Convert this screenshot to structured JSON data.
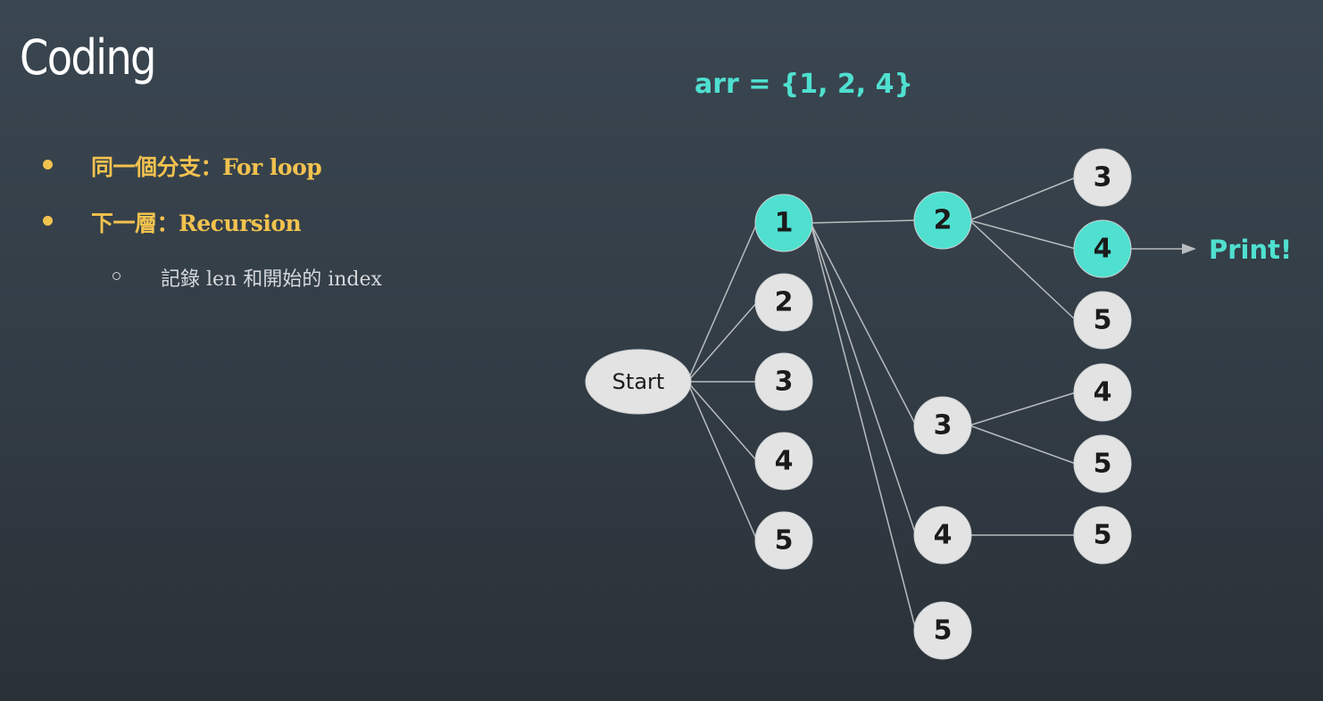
{
  "slide": {
    "title": "Coding",
    "bullets": [
      {
        "text": "同一個分支：For loop"
      },
      {
        "text": "下一層：Recursion"
      }
    ],
    "sub_bullets": [
      {
        "text": "記錄 len 和開始的 index"
      }
    ]
  },
  "diagram": {
    "array_label": "arr = {1, 2, 4}",
    "print_label": "Print!",
    "colors": {
      "highlight": "#4fe0d0",
      "node_fill": "#e3e3e3",
      "edge": "#b8bcbf",
      "text_accent": "#f2c24f"
    },
    "nodes": [
      {
        "id": "start",
        "label": "Start",
        "highlighted": false
      },
      {
        "id": "l1_1",
        "label": "1",
        "highlighted": true
      },
      {
        "id": "l1_2",
        "label": "2",
        "highlighted": false
      },
      {
        "id": "l1_3",
        "label": "3",
        "highlighted": false
      },
      {
        "id": "l1_4",
        "label": "4",
        "highlighted": false
      },
      {
        "id": "l1_5",
        "label": "5",
        "highlighted": false
      },
      {
        "id": "l2_2",
        "label": "2",
        "highlighted": true
      },
      {
        "id": "l2_3",
        "label": "3",
        "highlighted": false
      },
      {
        "id": "l2_4",
        "label": "4",
        "highlighted": false
      },
      {
        "id": "l2_5",
        "label": "5",
        "highlighted": false
      },
      {
        "id": "l3_3a",
        "label": "3",
        "highlighted": false
      },
      {
        "id": "l3_4a",
        "label": "4",
        "highlighted": true
      },
      {
        "id": "l3_5a",
        "label": "5",
        "highlighted": false
      },
      {
        "id": "l3_4b",
        "label": "4",
        "highlighted": false
      },
      {
        "id": "l3_5b",
        "label": "5",
        "highlighted": false
      },
      {
        "id": "l3_5c",
        "label": "5",
        "highlighted": false
      }
    ],
    "edges": [
      [
        "start",
        "l1_1"
      ],
      [
        "start",
        "l1_2"
      ],
      [
        "start",
        "l1_3"
      ],
      [
        "start",
        "l1_4"
      ],
      [
        "start",
        "l1_5"
      ],
      [
        "l1_1",
        "l2_2"
      ],
      [
        "l1_1",
        "l2_3"
      ],
      [
        "l1_1",
        "l2_4"
      ],
      [
        "l1_1",
        "l2_5"
      ],
      [
        "l2_2",
        "l3_3a"
      ],
      [
        "l2_2",
        "l3_4a"
      ],
      [
        "l2_2",
        "l3_5a"
      ],
      [
        "l2_3",
        "l3_4b"
      ],
      [
        "l2_3",
        "l3_5b"
      ],
      [
        "l2_4",
        "l3_5c"
      ]
    ]
  }
}
